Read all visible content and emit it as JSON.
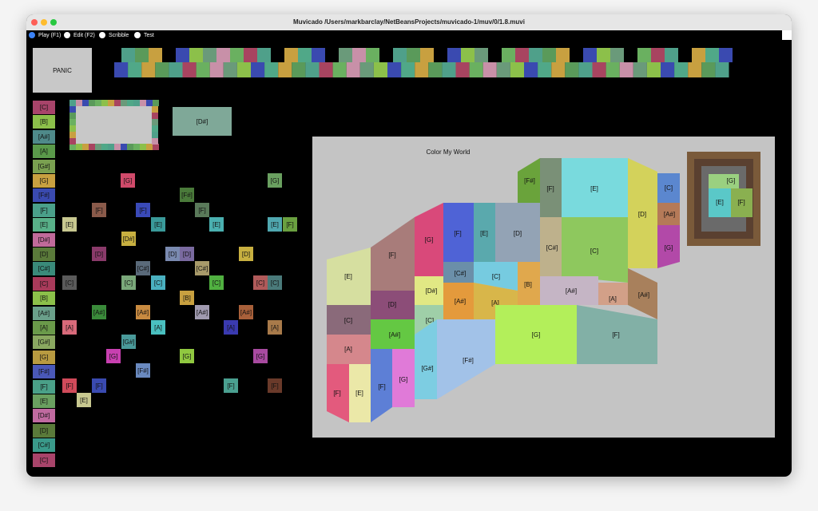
{
  "window": {
    "title": "Muvicado   /Users/markbarclay/NetBeansProjects/muvicado-1/muv/0/1.8.muvi"
  },
  "toolbar": {
    "modes": [
      "Play (F1)",
      "Edit (F2)",
      "Scribble",
      "Test"
    ]
  },
  "panic": "PANIC",
  "selected_note": "[D#]",
  "key_column": [
    "[C]",
    "[B]",
    "[A#]",
    "[A]",
    "[G#]",
    "[G]",
    "[F#]",
    "[F]",
    "[E]",
    "[D#]",
    "[D]",
    "[C#]",
    "[C]",
    "[B]",
    "[A#]",
    "[A]",
    "[G#]",
    "[G]",
    "[F#]",
    "[F]",
    "[E]",
    "[D#]",
    "[D]",
    "[C#]",
    "[C]"
  ],
  "note_grid": [
    "[G]",
    "[G]",
    "[F#]",
    "[F]",
    "[F]",
    "[F]",
    "[E]",
    "[E]",
    "[E]",
    "[E]",
    "[F]",
    "[D#]",
    "[D]",
    "[D]",
    "[D]",
    "[D]",
    "[C#]",
    "[C#]",
    "[C]",
    "[C]",
    "[C]",
    "[C]",
    "[C]",
    "[C]",
    "[B]",
    "[A#]",
    "[A#]",
    "[A#]",
    "[A#]",
    "[A]",
    "[A]",
    "[A]",
    "[A]",
    "[G#]",
    "[G]",
    "[G]",
    "[G]",
    "[F#]",
    "[F]",
    "[F]",
    "[F]",
    "[F]",
    "[E]"
  ],
  "canvas": {
    "title": "Color My World",
    "regions": [
      "[E]",
      "[F]",
      "[G]",
      "[F]",
      "[E]",
      "[D]",
      "[F#]",
      "[F]",
      "[E]",
      "[D]",
      "[C]",
      "[A#]",
      "[G]",
      "[C#]",
      "[C]",
      "[C#]",
      "[C]",
      "[B]",
      "[A#]",
      "[A]",
      "[A#]",
      "[D#]",
      "[A#]",
      "[A]",
      "[D]",
      "[C]",
      "[C]",
      "[A]",
      "[A#]",
      "[G#]",
      "[F#]",
      "[G]",
      "[F]",
      "[F]",
      "[E]",
      "[F]",
      "[G]"
    ],
    "inset": [
      "[G]",
      "[E]",
      "[F]"
    ]
  }
}
